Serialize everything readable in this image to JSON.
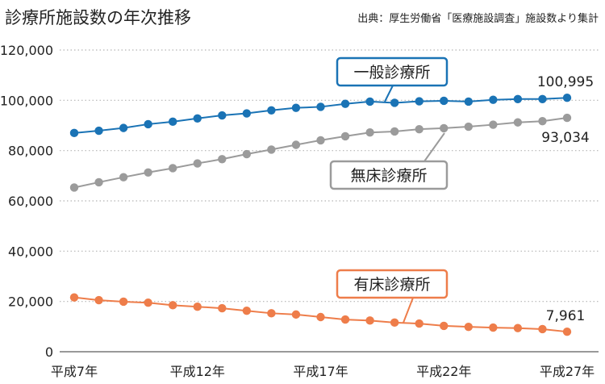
{
  "chart_data": {
    "type": "line",
    "title": "診療所施設数の年次推移",
    "source": "出典：厚生労働省「医療施設調査」施設数より集計",
    "x": [
      "平成7年",
      "平成8年",
      "平成9年",
      "平成10年",
      "平成11年",
      "平成12年",
      "平成13年",
      "平成14年",
      "平成15年",
      "平成16年",
      "平成17年",
      "平成18年",
      "平成19年",
      "平成20年",
      "平成21年",
      "平成22年",
      "平成23年",
      "平成24年",
      "平成25年",
      "平成26年",
      "平成27年"
    ],
    "x_tick_labels": [
      "平成7年",
      "平成12年",
      "平成17年",
      "平成22年",
      "平成27年"
    ],
    "x_tick_indices": [
      0,
      5,
      10,
      15,
      20
    ],
    "y_ticks": [
      "0",
      "20,000",
      "40,000",
      "60,000",
      "80,000",
      "100,000",
      "120,000"
    ],
    "ylim": [
      0,
      120000
    ],
    "grid": "horizontal dotted",
    "series": [
      {
        "name": "一般診療所",
        "color": "#1a73b5",
        "values": [
          87000,
          87900,
          89000,
          90500,
          91500,
          92800,
          94000,
          94800,
          96000,
          97000,
          97400,
          98600,
          99500,
          99000,
          99600,
          99800,
          99500,
          100200,
          100500,
          100500,
          100995
        ],
        "end_label": "100,995"
      },
      {
        "name": "無床診療所",
        "color": "#9b9b9b",
        "values": [
          65300,
          67400,
          69400,
          71300,
          73000,
          74900,
          76600,
          78600,
          80400,
          82300,
          84100,
          85700,
          87200,
          87600,
          88500,
          88900,
          89500,
          90300,
          91200,
          91700,
          93034
        ],
        "end_label": "93,034"
      },
      {
        "name": "有床診療所",
        "color": "#ee7d4a",
        "values": [
          21600,
          20500,
          19900,
          19500,
          18500,
          17900,
          17300,
          16300,
          15300,
          14800,
          13800,
          12800,
          12400,
          11600,
          11200,
          10300,
          9900,
          9600,
          9400,
          9000,
          7961
        ],
        "end_label": "7,961"
      }
    ]
  }
}
